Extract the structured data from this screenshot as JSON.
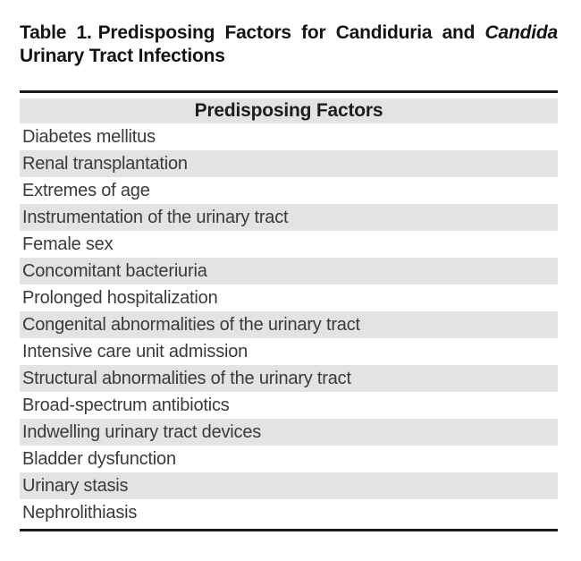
{
  "caption": {
    "label": "Table 1.",
    "text": "Predisposing Factors for Candiduria and",
    "italic": "Candida",
    "line2": "Urinary Tract Infections"
  },
  "table": {
    "header": "Predisposing Factors",
    "rows": [
      "Diabetes mellitus",
      "Renal transplantation",
      "Extremes of age",
      "Instrumentation of the urinary tract",
      "Female sex",
      "Concomitant bacteriuria",
      "Prolonged hospitalization",
      "Congenital abnormalities of the urinary tract",
      "Intensive care unit admission",
      "Structural abnormalities of the urinary tract",
      "Broad-spectrum antibiotics",
      "Indwelling urinary tract devices",
      "Bladder dysfunction",
      "Urinary stasis",
      "Nephrolithiasis"
    ]
  },
  "colors": {
    "stripe_gray": "#e3e3e3",
    "rule_black": "#1b1b1b",
    "body_text": "#3a3a3a",
    "caption_text": "#141414",
    "page_background": "#ffffff"
  }
}
